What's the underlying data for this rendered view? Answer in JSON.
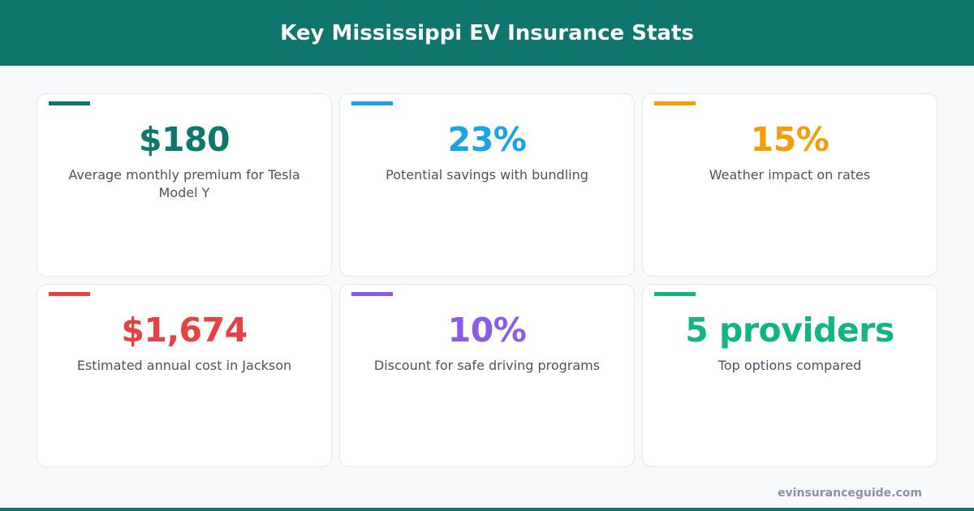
{
  "title": "Key Mississippi EV Insurance Stats",
  "cards": [
    {
      "value": "$180",
      "label": "Average monthly premium for Tesla Model Y",
      "color": "#0f766e"
    },
    {
      "value": "23%",
      "label": "Potential savings with bundling",
      "color": "#1ca3e3"
    },
    {
      "value": "15%",
      "label": "Weather impact on rates",
      "color": "#f29e0c"
    },
    {
      "value": "$1,674",
      "label": "Estimated annual cost in Jackson",
      "color": "#e54343"
    },
    {
      "value": "10%",
      "label": "Discount for safe driving programs",
      "color": "#8b5ce6"
    },
    {
      "value": "5 providers",
      "label": "Top options compared",
      "color": "#12b57f"
    }
  ],
  "footer": "evinsuranceguide.com"
}
